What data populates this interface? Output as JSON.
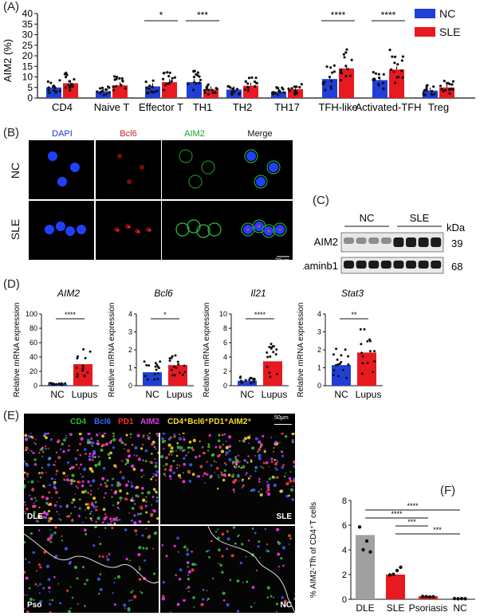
{
  "panelA": {
    "label": "(A)",
    "ylabel": "AIM2 (%)",
    "legend": [
      {
        "name": "NC",
        "color": "#1f3fd6"
      },
      {
        "name": "SLE",
        "color": "#e8191f"
      }
    ],
    "yticks": [
      "0",
      "5",
      "10",
      "15",
      "20",
      "25",
      "30",
      "35",
      "40"
    ],
    "groups": [
      {
        "label": "CD4",
        "nc": 5,
        "sle": 7
      },
      {
        "label": "Naive T",
        "nc": 3.2,
        "sle": 6
      },
      {
        "label": "Effector T",
        "nc": 5.5,
        "sle": 7.5
      },
      {
        "label": "TH1",
        "nc": 7.5,
        "sle": 4
      },
      {
        "label": "TH2",
        "nc": 4,
        "sle": 5.8
      },
      {
        "label": "TH17",
        "nc": 3,
        "sle": 4.2
      },
      {
        "label": "TFH-like",
        "nc": 9,
        "sle": 14
      },
      {
        "label": "Activated-TFH",
        "nc": 8.5,
        "sle": 13.5
      },
      {
        "label": "Treg",
        "nc": 3.5,
        "sle": 5
      }
    ],
    "sig": [
      {
        "text": "*",
        "group": 2
      },
      {
        "text": "***",
        "group": 3
      },
      {
        "text": "****",
        "group": 6
      },
      {
        "text": "****",
        "group": 7
      }
    ]
  },
  "panelB": {
    "label": "(B)",
    "cols": [
      {
        "text": "DAPI",
        "color": "#1a33e0"
      },
      {
        "text": "Bcl6",
        "color": "#d11b1b"
      },
      {
        "text": "AIM2",
        "color": "#17a22a"
      },
      {
        "text": "Merge",
        "color": "#111111"
      }
    ],
    "rows": [
      "NC",
      "SLE"
    ],
    "scalebar": "20μm"
  },
  "panelC": {
    "label": "(C)",
    "groups": [
      "NC",
      "SLE"
    ],
    "kda": "kDa",
    "bands": [
      {
        "name": "AIM2",
        "kda": "39"
      },
      {
        "name": "Laminb1",
        "kda": "68"
      }
    ]
  },
  "panelD": {
    "label": "(D)",
    "ylabel": "Relative mRNA expression",
    "plots": [
      {
        "title": "AIM2",
        "ymax": 100,
        "ticks": [
          "0",
          "20",
          "40",
          "60",
          "80",
          "100"
        ],
        "nc": 2,
        "lupus": 30,
        "sig": "****",
        "xl": [
          "NC",
          "Lupus"
        ]
      },
      {
        "title": "Bcl6",
        "ymax": 4,
        "ticks": [
          "0",
          "1",
          "2",
          "3",
          "4"
        ],
        "nc": 0.75,
        "lupus": 1.15,
        "sig": "*",
        "xl": [
          "NC",
          "Lupus"
        ]
      },
      {
        "title": "Il21",
        "ymax": 10,
        "ticks": [
          "0",
          "2",
          "4",
          "6",
          "8",
          "10"
        ],
        "nc": 0.7,
        "lupus": 3.4,
        "sig": "****",
        "xl": [
          "NC",
          "Lupus"
        ]
      },
      {
        "title": "Stat3",
        "ymax": 4,
        "ticks": [
          "0",
          "1",
          "2",
          "3",
          "4"
        ],
        "nc": 1.15,
        "lupus": 1.85,
        "sig": "**",
        "xl": [
          "NC",
          "Lupus"
        ]
      }
    ]
  },
  "panelE": {
    "label": "(E)",
    "markers": [
      {
        "text": "CD4",
        "color": "#22c12e"
      },
      {
        "text": "Bcl6",
        "color": "#3a66ff"
      },
      {
        "text": "PD1",
        "color": "#ff2a2a"
      },
      {
        "text": "AIM2",
        "color": "#e23ce6"
      },
      {
        "text": "CD4⁺Bcl6⁺PD1⁺AIM2⁺",
        "color": "#f0e020"
      }
    ],
    "scalebar": "50μm",
    "tiles": [
      "DLE",
      "SLE",
      "Pso",
      "NC"
    ]
  },
  "panelF": {
    "label": "(F)",
    "ylabel": "% AIM2-Tfh of CD4⁺T cells",
    "yticks": [
      "0",
      "2",
      "4",
      "6",
      "8"
    ],
    "categories": [
      "DLE",
      "SLE",
      "Psoriasis",
      "NC"
    ],
    "values": [
      5.2,
      2.0,
      0.25,
      0.05
    ],
    "colors": [
      "#a0a0a0",
      "#e8191f",
      "#e8191f",
      "#e8191f"
    ],
    "sig": [
      "****",
      "****",
      "***",
      "***"
    ]
  }
}
